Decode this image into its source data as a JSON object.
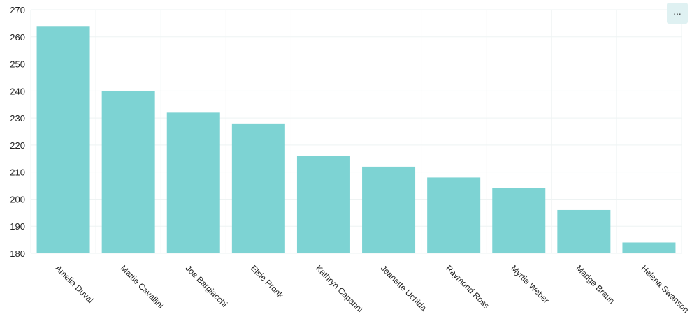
{
  "menu_button": {
    "label": "...",
    "icon": "ellipsis-icon"
  },
  "colors": {
    "bar": "#7dd3d3",
    "grid": "#eef3f3",
    "text": "#222222"
  },
  "chart_data": {
    "type": "bar",
    "categories": [
      "Amelia Duval",
      "Mattie Cavallini",
      "Joe Bargiacchi",
      "Elsie Pronk",
      "Kathryn Capanni",
      "Jeanette Uchida",
      "Raymond Ross",
      "Myrtie Weber",
      "Madge Braun",
      "Helena Swanson"
    ],
    "values": [
      264,
      240,
      232,
      228,
      216,
      212,
      208,
      204,
      196,
      184
    ],
    "title": "",
    "xlabel": "",
    "ylabel": "",
    "ylim": [
      180,
      270
    ],
    "yticks": [
      180,
      190,
      200,
      210,
      220,
      230,
      240,
      250,
      260,
      270
    ],
    "grid": true,
    "legend": "none"
  }
}
